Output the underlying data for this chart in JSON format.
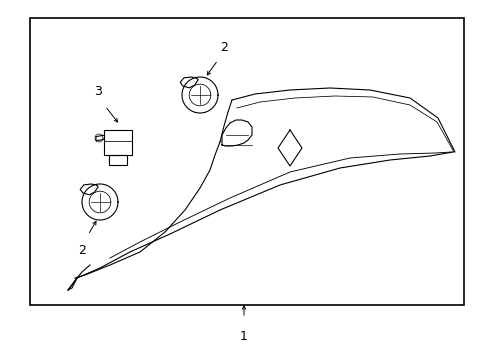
{
  "background_color": "#ffffff",
  "border_color": "#000000",
  "line_color": "#000000",
  "label_color": "#000000",
  "border_linewidth": 1.2,
  "part_linewidth": 0.8
}
